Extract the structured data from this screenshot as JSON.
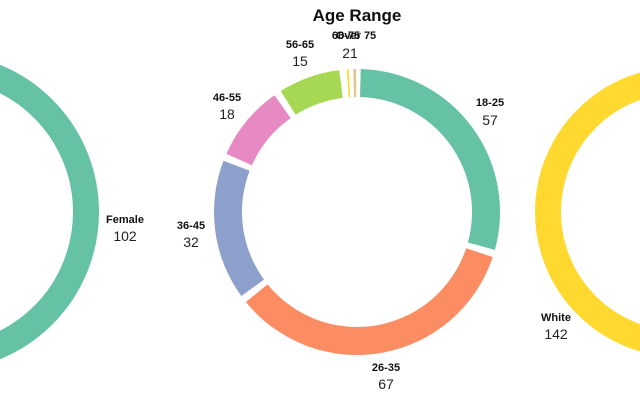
{
  "chart_data": [
    {
      "type": "pie",
      "variant": "donut",
      "title": "",
      "note": "Partially visible at left edge (gender)",
      "categories": [
        "Female"
      ],
      "values": [
        102
      ],
      "colors": [
        "#66c2a5"
      ]
    },
    {
      "type": "pie",
      "variant": "donut",
      "title": "Age Range",
      "categories": [
        "18-25",
        "26-35",
        "36-45",
        "46-55",
        "56-65",
        "66-75",
        "Over 75"
      ],
      "values": [
        57,
        67,
        32,
        18,
        15,
        2,
        1
      ],
      "colors": [
        "#66c2a5",
        "#fc8d62",
        "#8da0cb",
        "#e78ac3",
        "#a6d854",
        "#ffd92f",
        "#e5c494"
      ],
      "overlap_label_value": "21"
    },
    {
      "type": "pie",
      "variant": "donut",
      "title": "",
      "note": "Partially visible at right edge (race)",
      "categories": [
        "White"
      ],
      "values": [
        142
      ],
      "colors": [
        "#ffd92f"
      ]
    }
  ]
}
